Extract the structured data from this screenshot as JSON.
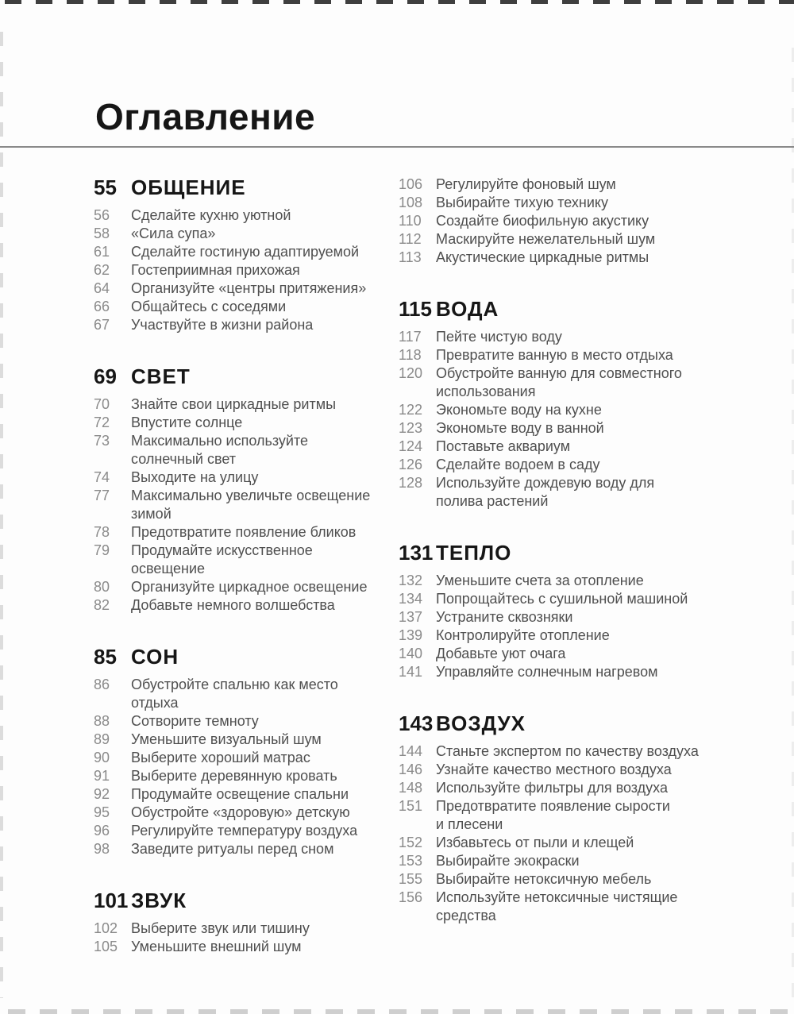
{
  "page": {
    "title": "Оглавление"
  },
  "columns": [
    {
      "blocks": [
        {
          "number": "55",
          "title": "ОБЩЕНИЕ",
          "items": [
            {
              "num": "56",
              "text": "Сделайте кухню уютной"
            },
            {
              "num": "58",
              "text": "«Сила супа»"
            },
            {
              "num": "61",
              "text": "Сделайте гостиную адаптируемой"
            },
            {
              "num": "62",
              "text": "Гостеприимная прихожая"
            },
            {
              "num": "64",
              "text": "Организуйте «центры притяжения»"
            },
            {
              "num": "66",
              "text": "Общайтесь с соседями"
            },
            {
              "num": "67",
              "text": "Участвуйте в жизни района"
            }
          ]
        },
        {
          "number": "69",
          "title": "СВЕТ",
          "items": [
            {
              "num": "70",
              "text": "Знайте свои циркадные ритмы"
            },
            {
              "num": "72",
              "text": "Впустите солнце"
            },
            {
              "num": "73",
              "text": "Максимально используйте\nсолнечный свет"
            },
            {
              "num": "74",
              "text": "Выходите на улицу"
            },
            {
              "num": "77",
              "text": "Максимально увеличьте освещение\nзимой"
            },
            {
              "num": "78",
              "text": "Предотвратите появление бликов"
            },
            {
              "num": "79",
              "text": "Продумайте искусственное освещение"
            },
            {
              "num": "80",
              "text": "Организуйте циркадное освещение"
            },
            {
              "num": "82",
              "text": "Добавьте немного волшебства"
            }
          ]
        },
        {
          "number": "85",
          "title": "СОН",
          "items": [
            {
              "num": "86",
              "text": "Обустройте спальню как место отдыха"
            },
            {
              "num": "88",
              "text": "Сотворите темноту"
            },
            {
              "num": "89",
              "text": "Уменьшите визуальный шум"
            },
            {
              "num": "90",
              "text": "Выберите хороший матрас"
            },
            {
              "num": "91",
              "text": "Выберите деревянную кровать"
            },
            {
              "num": "92",
              "text": "Продумайте освещение спальни"
            },
            {
              "num": "95",
              "text": "Обустройте «здоровую» детскую"
            },
            {
              "num": "96",
              "text": "Регулируйте температуру воздуха"
            },
            {
              "num": "98",
              "text": "Заведите ритуалы перед сном"
            }
          ]
        },
        {
          "number": "101",
          "title": "ЗВУК",
          "items": [
            {
              "num": "102",
              "text": "Выберите звук или тишину"
            },
            {
              "num": "105",
              "text": "Уменьшите внешний шум"
            }
          ]
        }
      ]
    },
    {
      "blocks": [
        {
          "number": "",
          "title": "",
          "items": [
            {
              "num": "106",
              "text": "Регулируйте фоновый шум"
            },
            {
              "num": "108",
              "text": "Выбирайте тихую технику"
            },
            {
              "num": "110",
              "text": "Создайте биофильную акустику"
            },
            {
              "num": "112",
              "text": "Маскируйте нежелательный шум"
            },
            {
              "num": "113",
              "text": "Акустические циркадные ритмы"
            }
          ]
        },
        {
          "number": "115",
          "title": "ВОДА",
          "items": [
            {
              "num": "117",
              "text": "Пейте чистую воду"
            },
            {
              "num": "118",
              "text": "Превратите ванную в место отдыха"
            },
            {
              "num": "120",
              "text": "Обустройте ванную для совместного\nиспользования"
            },
            {
              "num": "122",
              "text": "Экономьте воду на кухне"
            },
            {
              "num": "123",
              "text": "Экономьте воду в ванной"
            },
            {
              "num": "124",
              "text": "Поставьте аквариум"
            },
            {
              "num": "126",
              "text": "Сделайте водоем в саду"
            },
            {
              "num": "128",
              "text": "Используйте дождевую воду для\nполива растений"
            }
          ]
        },
        {
          "number": "131",
          "title": "ТЕПЛО",
          "items": [
            {
              "num": "132",
              "text": "Уменьшите счета за отопление"
            },
            {
              "num": "134",
              "text": "Попрощайтесь с сушильной машиной"
            },
            {
              "num": "137",
              "text": "Устраните сквозняки"
            },
            {
              "num": "139",
              "text": "Контролируйте отопление"
            },
            {
              "num": "140",
              "text": "Добавьте уют очага"
            },
            {
              "num": "141",
              "text": "Управляйте солнечным нагревом"
            }
          ]
        },
        {
          "number": "143",
          "title": "ВОЗДУХ",
          "items": [
            {
              "num": "144",
              "text": "Станьте экспертом по качеству воздуха"
            },
            {
              "num": "146",
              "text": "Узнайте качество местного воздуха"
            },
            {
              "num": "148",
              "text": "Используйте фильтры для воздуха"
            },
            {
              "num": "151",
              "text": "Предотвратите появление сырости\nи плесени"
            },
            {
              "num": "152",
              "text": "Избавьтесь от пыли и клещей"
            },
            {
              "num": "153",
              "text": "Выбирайте экокраски"
            },
            {
              "num": "155",
              "text": "Выбирайте нетоксичную мебель"
            },
            {
              "num": "156",
              "text": "Используйте нетоксичные чистящие\nсредства"
            }
          ]
        }
      ]
    }
  ]
}
